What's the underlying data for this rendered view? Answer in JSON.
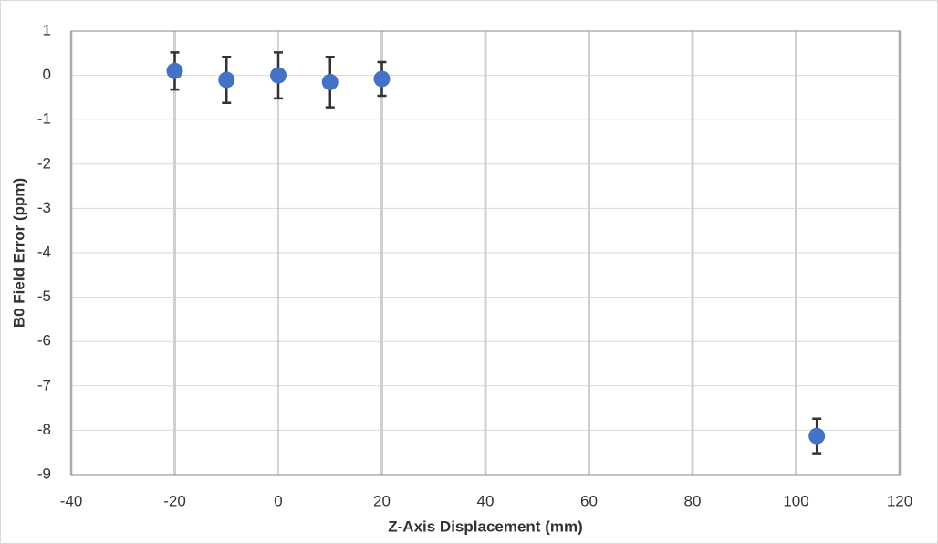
{
  "chart_data": {
    "type": "scatter",
    "x": [
      -20,
      -10,
      0,
      10,
      20,
      104
    ],
    "values": [
      0.1,
      -0.1,
      0,
      -0.15,
      -0.08,
      -8.13
    ],
    "errors": [
      0.42,
      0.52,
      0.52,
      0.57,
      0.38,
      0.39
    ],
    "color": "#4472c4",
    "xlabel": "Z-Axis Displacement (mm)",
    "ylabel": "B0 Field Error (ppm)",
    "xlim": [
      -40,
      120
    ],
    "xticks": [
      -40,
      -20,
      0,
      20,
      40,
      60,
      80,
      100,
      120
    ],
    "ylim": [
      -9,
      1
    ],
    "yticks": [
      1,
      0,
      -1,
      -2,
      -3,
      -4,
      -5,
      -6,
      -7,
      -8,
      -9
    ],
    "grid": true
  }
}
